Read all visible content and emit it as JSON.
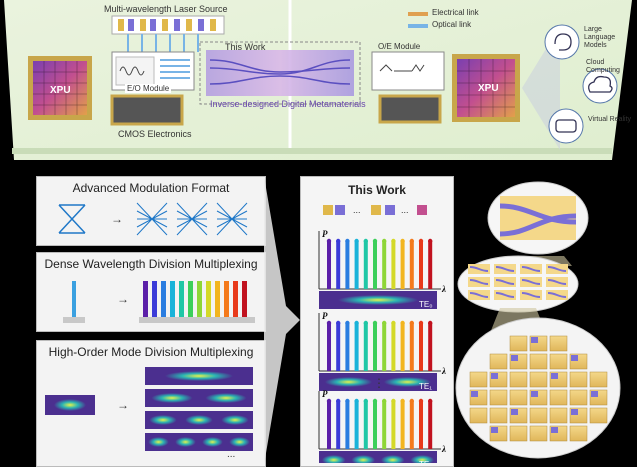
{
  "top": {
    "laser_source": "Multi-wavelength Laser Source",
    "this_work": "This Work",
    "eo_module": "E/O Module",
    "oe_module": "O/E Module",
    "metamaterials": "Inverse-designed Digital Metamaterials",
    "cmos": "CMOS Electronics",
    "xpu_left": "XPU",
    "xpu_right": "XPU",
    "legend": {
      "electrical": "Electrical link",
      "optical": "Optical link"
    },
    "apps": [
      {
        "label": "Large Language Models",
        "icon": "brain-icon"
      },
      {
        "label": "Cloud Computing",
        "icon": "cloud-icon"
      },
      {
        "label": "Virtual Reality",
        "icon": "vr-headset-icon"
      }
    ]
  },
  "panels": {
    "modulation": "Advanced Modulation Format",
    "wdm": "Dense Wavelength Division Multiplexing",
    "mdm": "High-Order Mode Division Multiplexing",
    "mdm_ellipsis": "...",
    "this_work": "This Work"
  },
  "spectra": {
    "p_label": "P",
    "lambda_label": "λ",
    "modes": [
      "TE₀",
      "TE₁",
      "TEₙ"
    ],
    "dots": "⋮",
    "ellipsis": "..."
  },
  "colors": {
    "rainbow": [
      "#5b1fa8",
      "#3b3bd8",
      "#2a7de0",
      "#19b3d9",
      "#1fc7a6",
      "#3ccf5a",
      "#8ed637",
      "#d4d928",
      "#f2b51f",
      "#f47a1c",
      "#e83a1b",
      "#c1121f"
    ],
    "board": "#e8f2dc",
    "chip": "#c8a64a",
    "metamaterial": "#8a7fd6"
  }
}
